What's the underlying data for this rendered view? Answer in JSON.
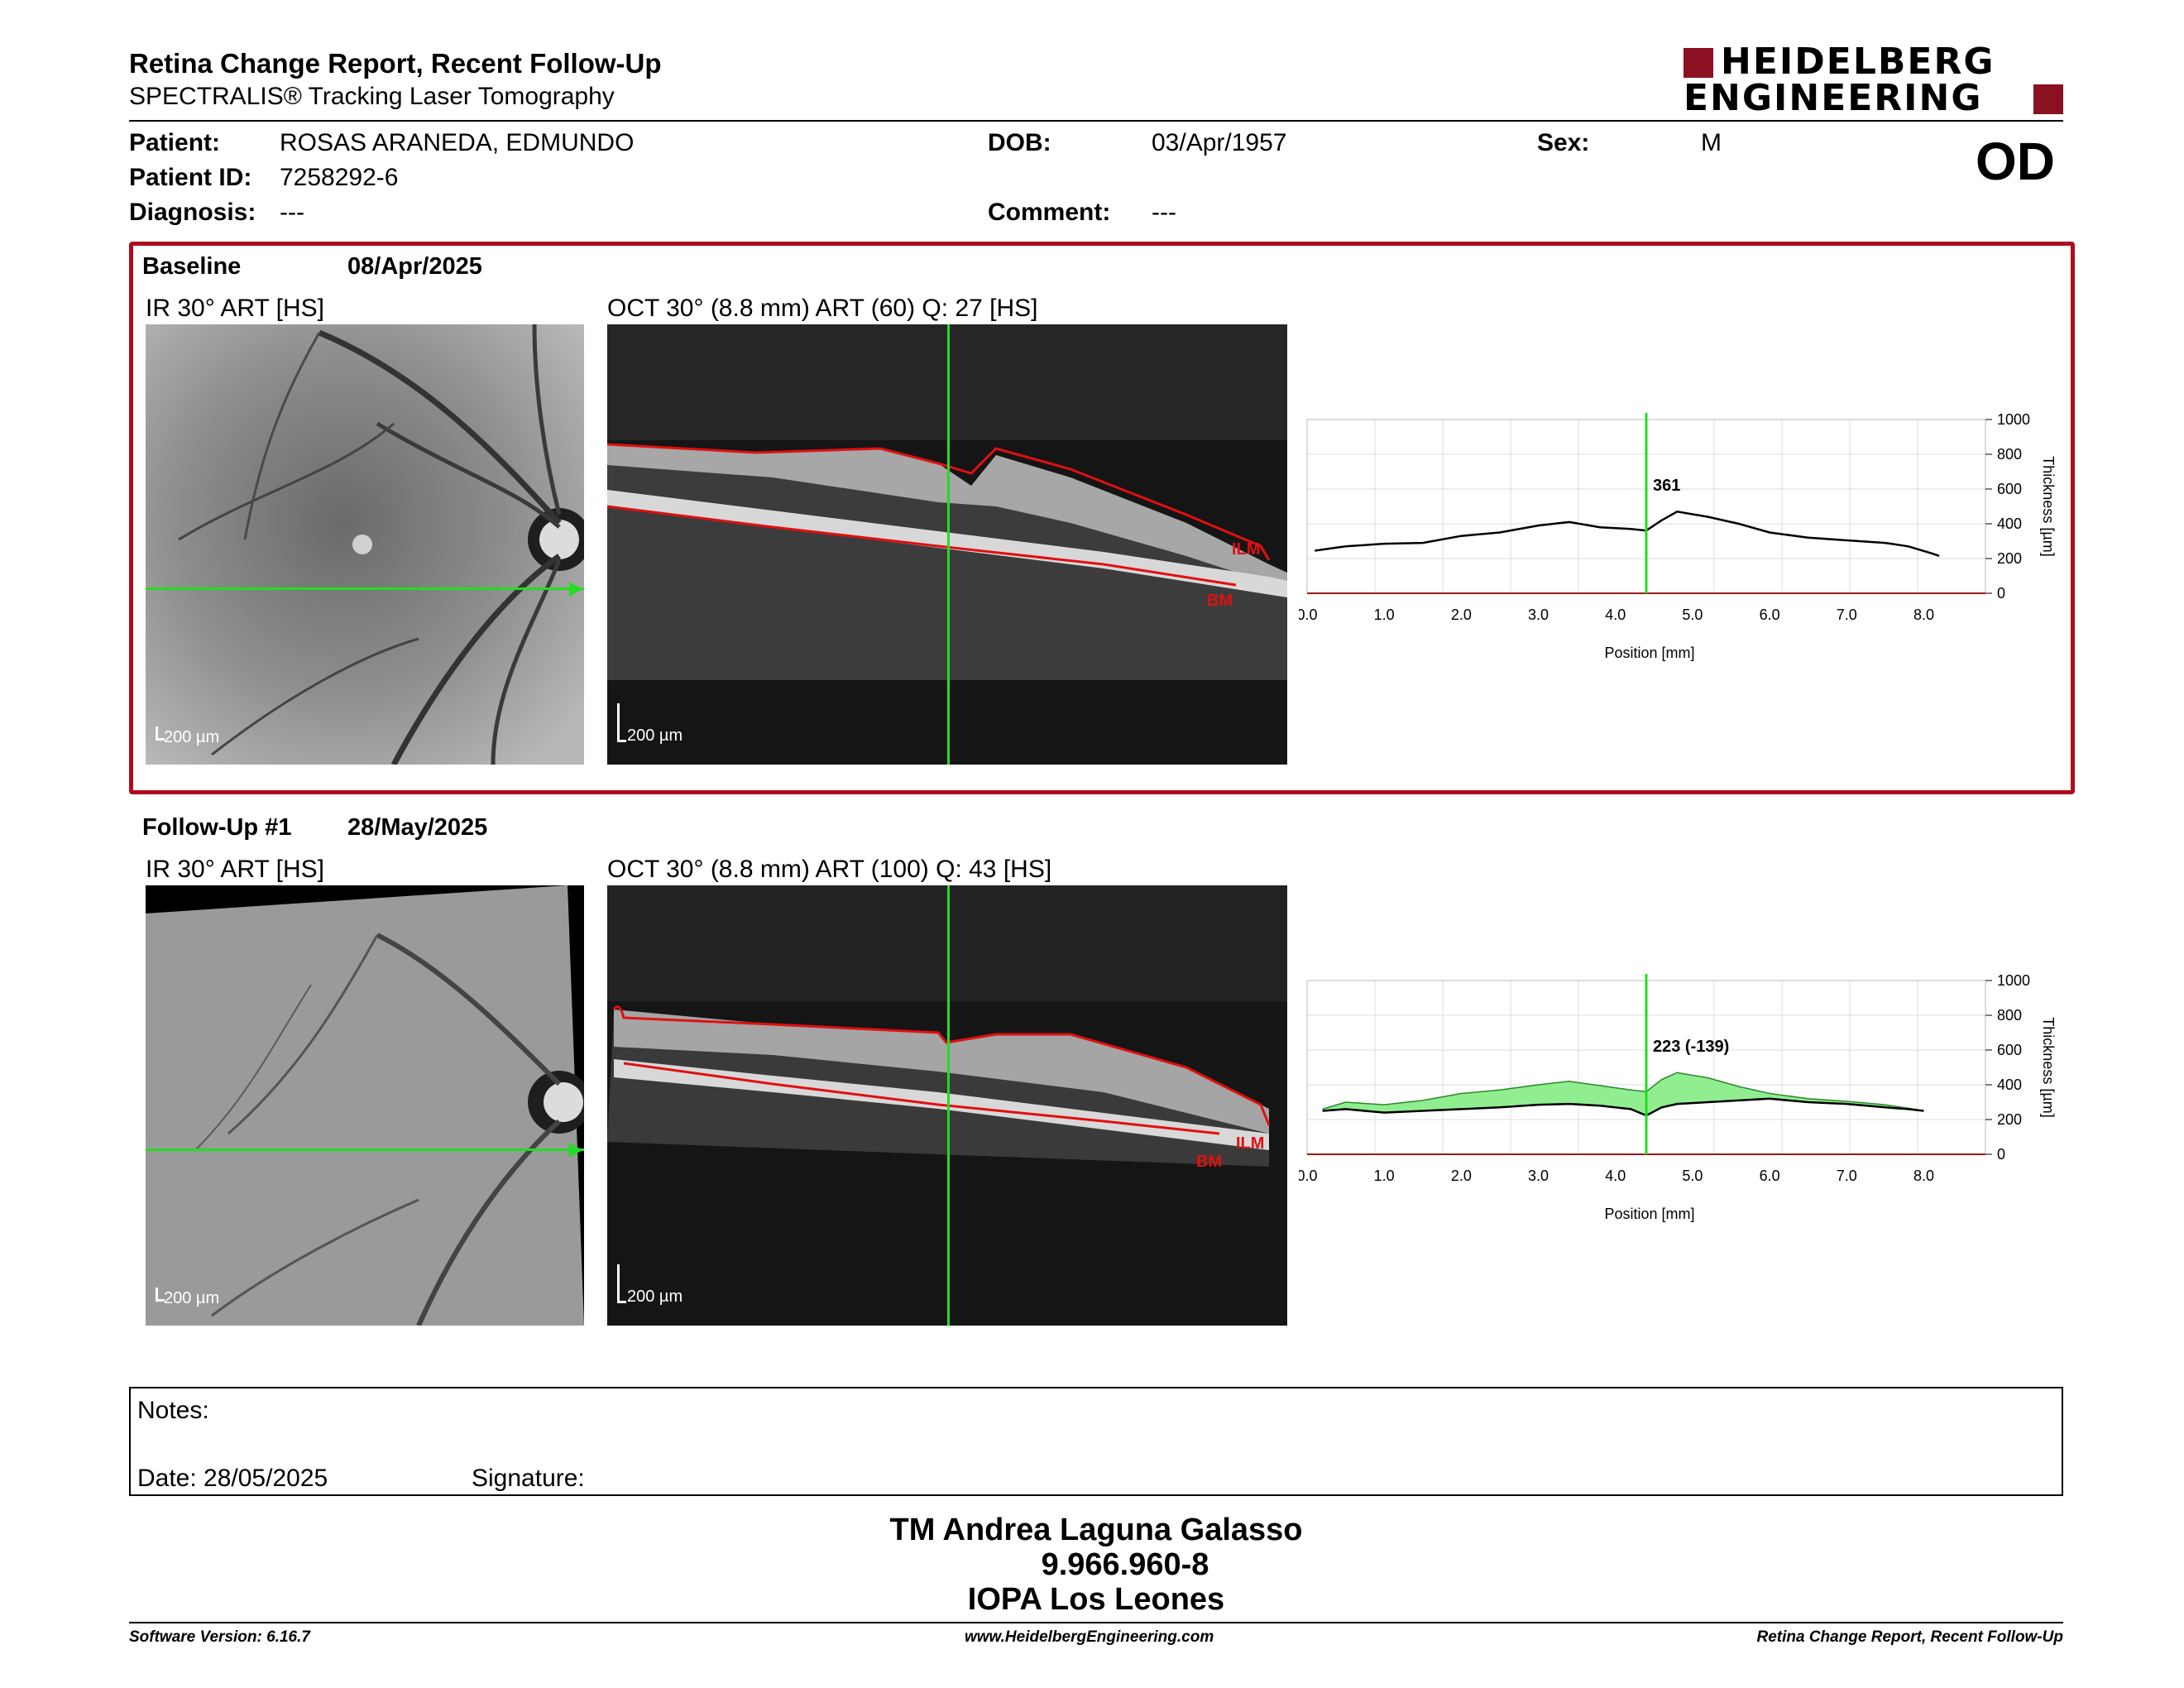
{
  "header": {
    "title": "Retina Change Report, Recent Follow-Up",
    "subtitle": "SPECTRALIS® Tracking Laser Tomography",
    "logo_line1": "HEIDELBERG",
    "logo_line2": "ENGINEERING",
    "eye": "OD"
  },
  "patient": {
    "name_label": "Patient:",
    "name": "ROSAS ARANEDA, EDMUNDO",
    "id_label": "Patient ID:",
    "id": "7258292-6",
    "diagnosis_label": "Diagnosis:",
    "diagnosis": "---",
    "dob_label": "DOB:",
    "dob": "03/Apr/1957",
    "comment_label": "Comment:",
    "comment": "---",
    "sex_label": "Sex:",
    "sex": "M"
  },
  "baseline": {
    "label": "Baseline",
    "date": "08/Apr/2025",
    "ir_title": "IR 30° ART [HS]",
    "oct_title": "OCT 30° (8.8 mm) ART (60) Q: 27 [HS]",
    "ir_scale": "200 µm",
    "oct_scale": "200 µm",
    "ilm_label": "ILM",
    "bm_label": "BM"
  },
  "followup": {
    "label": "Follow-Up #1",
    "date": "28/May/2025",
    "ir_title": "IR 30° ART [HS]",
    "oct_title": "OCT 30° (8.8 mm) ART (100) Q: 43 [HS]",
    "ir_scale": "200 µm",
    "oct_scale": "200 µm",
    "ilm_label": "ILM",
    "bm_label": "BM"
  },
  "chart_data": [
    {
      "type": "line",
      "xlabel": "Position [mm]",
      "ylabel": "Thickness [µm]",
      "xlim": [
        0,
        8.8
      ],
      "ylim": [
        0,
        1000
      ],
      "x_ticks": [
        "0.0",
        "1.0",
        "2.0",
        "3.0",
        "4.0",
        "5.0",
        "6.0",
        "7.0",
        "8.0"
      ],
      "y_ticks": [
        "1000",
        "800",
        "600",
        "400",
        "200",
        "0"
      ],
      "cursor_x": 4.4,
      "cursor_label": "361",
      "series": [
        {
          "x": [
            0.1,
            0.5,
            1.0,
            1.5,
            2.0,
            2.5,
            3.0,
            3.4,
            3.8,
            4.2,
            4.4,
            4.6,
            4.8,
            5.2,
            5.6,
            6.0,
            6.5,
            7.0,
            7.5,
            7.8,
            8.1,
            8.2
          ],
          "y": [
            245,
            270,
            285,
            290,
            330,
            350,
            390,
            410,
            380,
            370,
            361,
            420,
            470,
            440,
            400,
            350,
            320,
            305,
            290,
            270,
            230,
            215
          ]
        }
      ]
    },
    {
      "type": "area",
      "xlabel": "Position [mm]",
      "ylabel": "Thickness [µm]",
      "xlim": [
        0,
        8.8
      ],
      "ylim": [
        0,
        1000
      ],
      "x_ticks": [
        "0.0",
        "1.0",
        "2.0",
        "3.0",
        "4.0",
        "5.0",
        "6.0",
        "7.0",
        "8.0"
      ],
      "y_ticks": [
        "1000",
        "800",
        "600",
        "400",
        "200",
        "0"
      ],
      "cursor_x": 4.4,
      "cursor_label": "223 (-139)",
      "series": [
        {
          "x": [
            0.2,
            0.5,
            1.0,
            1.5,
            2.0,
            2.5,
            3.0,
            3.4,
            3.8,
            4.2,
            4.4,
            4.6,
            4.8,
            5.2,
            5.6,
            6.0,
            6.5,
            7.0,
            7.5,
            7.8,
            8.0
          ],
          "y": [
            250,
            260,
            240,
            250,
            260,
            270,
            285,
            290,
            280,
            260,
            223,
            270,
            290,
            300,
            310,
            320,
            300,
            290,
            270,
            260,
            250
          ]
        },
        {
          "x": [
            0.2,
            0.5,
            1.0,
            1.5,
            2.0,
            2.5,
            3.0,
            3.4,
            3.8,
            4.2,
            4.4,
            4.6,
            4.8,
            5.2,
            5.6,
            6.0,
            6.5,
            7.0,
            7.5,
            7.8,
            8.0
          ],
          "y": [
            260,
            300,
            285,
            310,
            350,
            370,
            400,
            420,
            395,
            370,
            361,
            430,
            470,
            440,
            390,
            350,
            320,
            305,
            285,
            265,
            250
          ]
        }
      ]
    }
  ],
  "notes": {
    "label": "Notes:",
    "date_label": "Date: 28/05/2025",
    "signature_label": "Signature:"
  },
  "signature_block": {
    "name": "TM Andrea Laguna Galasso",
    "rut": "9.966.960-8",
    "institution": "IOPA Los Leones"
  },
  "footer": {
    "version": "Software Version: 6.16.7",
    "url": "www.HeidelbergEngineering.com",
    "report": "Retina Change Report, Recent Follow-Up"
  },
  "colors": {
    "accent_red": "#b00a1e",
    "logo_red": "#8b1021",
    "cursor_green": "#22dd22",
    "fill_green": "#90ee90"
  }
}
